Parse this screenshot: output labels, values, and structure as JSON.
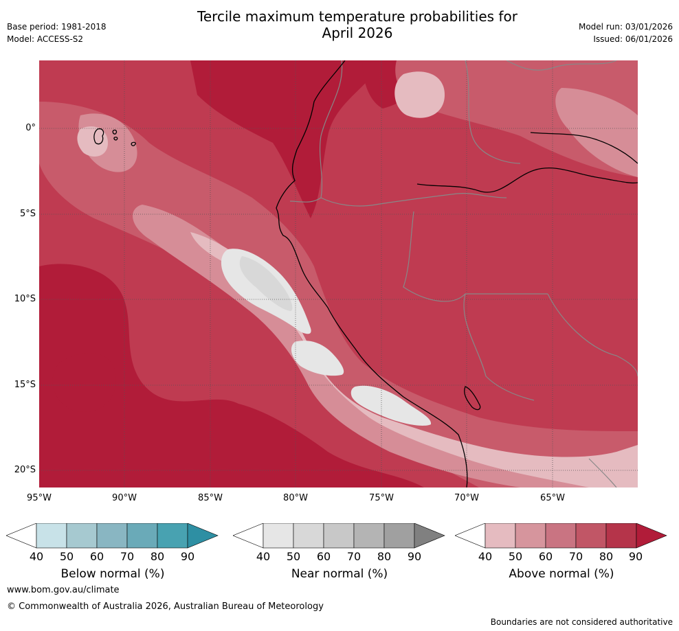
{
  "title_line1": "Tercile maximum temperature probabilities for",
  "title_line2": "April 2026",
  "header_left": {
    "base_period": "Base period: 1981-2018",
    "model": "Model: ACCESS-S2"
  },
  "header_right": {
    "model_run": "Model run: 03/01/2026",
    "issued": "Issued: 06/01/2026"
  },
  "map": {
    "lat_labels": [
      "0°",
      "5°S",
      "10°S",
      "15°S",
      "20°S"
    ],
    "lon_labels": [
      "95°W",
      "90°W",
      "85°W",
      "80°W",
      "75°W",
      "70°W",
      "65°W"
    ],
    "colors": {
      "above_90": "#b11c39",
      "above_80": "#bf3b51",
      "above_70": "#c85b6b",
      "above_60": "#d68d97",
      "above_50": "#e5bbc0",
      "near_40": "#e6e6e6",
      "near_50": "#d8d8d8",
      "coast": "#000000",
      "border": "#888888"
    }
  },
  "legends": [
    {
      "title": "Below normal (%)",
      "ticks": [
        "40",
        "50",
        "60",
        "70",
        "80",
        "90"
      ],
      "colors": [
        "#ffffff",
        "#c8e2e8",
        "#a6c9d0",
        "#89b6c2",
        "#6aaab8",
        "#48a2b1",
        "#2e8fa3"
      ]
    },
    {
      "title": "Near normal (%)",
      "ticks": [
        "40",
        "50",
        "60",
        "70",
        "80",
        "90"
      ],
      "colors": [
        "#ffffff",
        "#e6e6e6",
        "#d8d8d8",
        "#c8c8c8",
        "#b4b4b4",
        "#a0a0a0",
        "#808080"
      ]
    },
    {
      "title": "Above normal (%)",
      "ticks": [
        "40",
        "50",
        "60",
        "70",
        "80",
        "90"
      ],
      "colors": [
        "#ffffff",
        "#e5bbc0",
        "#d6959d",
        "#c97482",
        "#c15666",
        "#b5344a",
        "#b11c39"
      ]
    }
  ],
  "footer": {
    "website": "www.bom.gov.au/climate",
    "copyright": "© Commonwealth of Australia 2026, Australian Bureau of Meteorology",
    "disclaimer": "Boundaries are not considered authoritative"
  }
}
